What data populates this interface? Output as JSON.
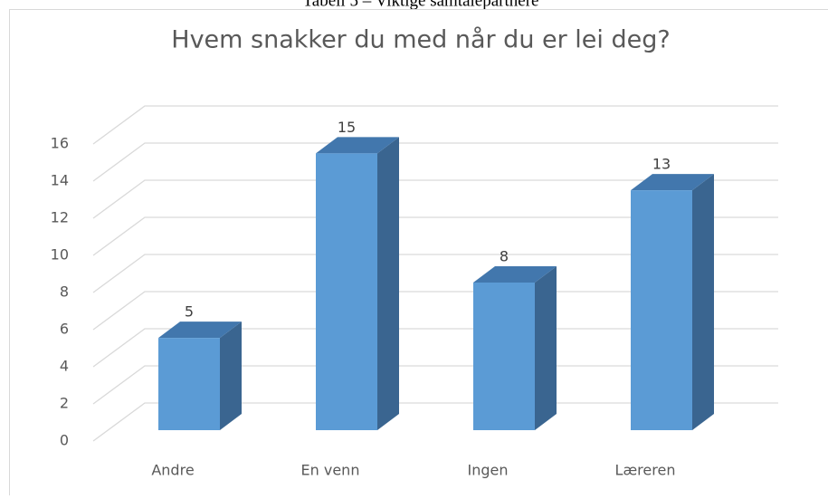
{
  "caption": "Tabell 5 – Viktige samtalepartnere",
  "chart_data": {
    "type": "bar3d",
    "title": "Hvem snakker du med når du er lei deg?",
    "categories": [
      "Andre",
      "En venn",
      "Ingen",
      "Læreren"
    ],
    "values": [
      5,
      15,
      8,
      13
    ],
    "color": "#5b9bd5",
    "ylim": [
      0,
      16
    ],
    "yticks": [
      0,
      2,
      4,
      6,
      8,
      10,
      12,
      14,
      16
    ],
    "grid": true
  }
}
